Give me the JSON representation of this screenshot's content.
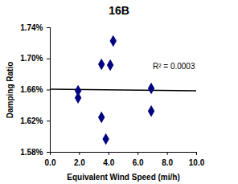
{
  "chart_data": {
    "type": "scatter",
    "title": "16B",
    "x_label": "Equivalent Wind Speed (mi/h)",
    "y_label": "Damping Ratio",
    "x": [
      1.9,
      1.9,
      3.5,
      3.5,
      3.8,
      4.1,
      4.3,
      6.9,
      6.9
    ],
    "values": [
      1.659,
      1.65,
      1.693,
      1.625,
      1.597,
      1.692,
      1.723,
      1.662,
      1.633
    ],
    "color": "#000080",
    "marker": "diamond",
    "trendline": {
      "x": [
        0,
        10
      ],
      "values": [
        1.661,
        1.659
      ],
      "color": "#000000"
    },
    "annotations": [
      "R² = 0.0003"
    ],
    "xlim": [
      0,
      10
    ],
    "xticks": [
      {
        "value": 0,
        "label": "0.0"
      },
      {
        "value": 2,
        "label": "2.0"
      },
      {
        "value": 4,
        "label": "4.0"
      },
      {
        "value": 6,
        "label": "6.0"
      },
      {
        "value": 8,
        "label": "8.0"
      },
      {
        "value": 10,
        "label": "10.0"
      }
    ],
    "ylim": [
      1.58,
      1.74
    ],
    "yticks": [
      {
        "value": 1.58,
        "label": "1.58%"
      },
      {
        "value": 1.62,
        "label": "1.62%"
      },
      {
        "value": 1.66,
        "label": "1.66%"
      },
      {
        "value": 1.7,
        "label": "1.70%"
      },
      {
        "value": 1.74,
        "label": "1.74%"
      }
    ],
    "grid": false
  }
}
